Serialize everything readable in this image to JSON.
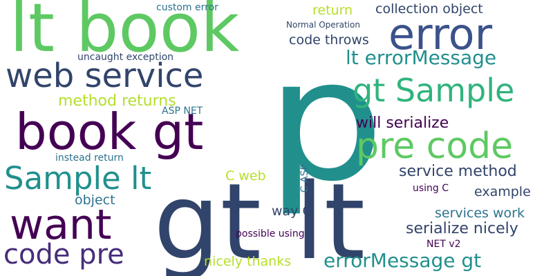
{
  "words": {
    "p": "p",
    "gt_lt": "gt lt",
    "lt_book": "lt book",
    "error": "error",
    "web_service": "web service",
    "book_gt": "book gt",
    "gt_sample": "gt Sample",
    "pre_code": "pre code",
    "sample_lt": "Sample lt",
    "want": "want",
    "code_pre": "code pre",
    "lt_errormessage": "lt errorMessage",
    "errormessage_gt": "errorMessage gt",
    "collection_object": "collection object",
    "return": "return",
    "custom_error": "custom error",
    "normal_operation": "Normal Operation",
    "code_throws": "code throws",
    "uncaught_exception": "uncaught exception",
    "method_returns": "method returns",
    "asp_net": "ASP NET",
    "will_serialize": "will serialize",
    "instead_return": "instead return",
    "c_web": "C web",
    "c_asp": "C ASP",
    "service_method": "service method",
    "example": "example",
    "object": "object",
    "using_c": "using C",
    "way_c": "way C",
    "services_work": "services work",
    "serialize_nicely": "serialize nicely",
    "possible_using": "possible using",
    "net_v2": "NET v2",
    "nicely_thanks": "nicely thanks"
  },
  "colors": {
    "background": "#ffffff",
    "palette": [
      "#440154",
      "#472d7b",
      "#3b528b",
      "#2c728e",
      "#21908d",
      "#2fb47c",
      "#5ec962",
      "#b5de2b"
    ]
  }
}
